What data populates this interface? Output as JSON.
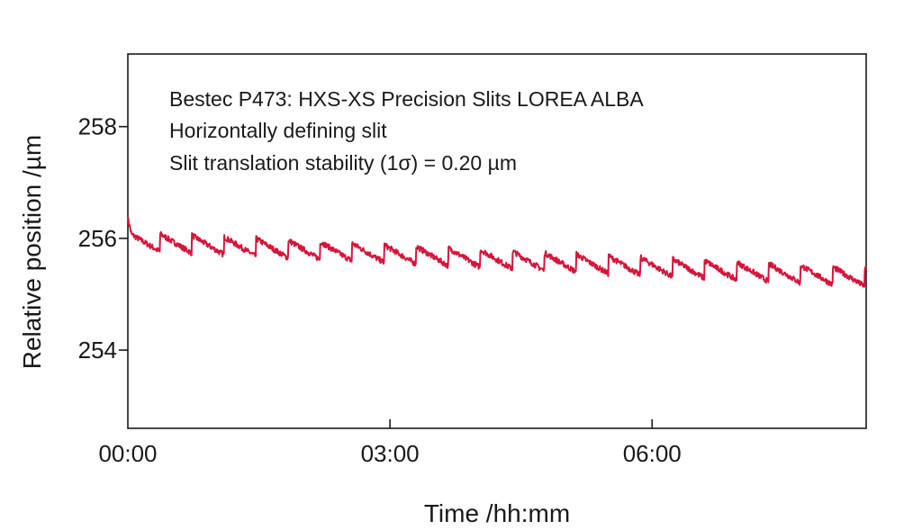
{
  "chart_data": {
    "type": "line",
    "annotations": [
      "Bestec P473: HXS-XS Precision Slits LOREA ALBA",
      "Horizontally defining slit",
      "Slit translation stability (1σ) = 0.20 µm"
    ],
    "xlabel": "Time /hh:mm",
    "ylabel": "Relative position /µm",
    "xticks": [
      "00:00",
      "03:00",
      "06:00"
    ],
    "xtick_minutes": [
      0,
      180,
      360
    ],
    "yticks": [
      "254",
      "256",
      "258"
    ],
    "ytick_values": [
      254,
      256,
      258
    ],
    "xlim_minutes": [
      0,
      507
    ],
    "ylim": [
      252.6,
      259.3
    ],
    "grid": false,
    "series": [
      {
        "color": "#d4163c",
        "trend": {
          "x": [
            0,
            507
          ],
          "y": [
            255.95,
            255.3
          ]
        },
        "sawtooth_period_minutes": 22,
        "sawtooth_amplitude": 0.32,
        "noise_amplitude": 0.05
      }
    ]
  }
}
